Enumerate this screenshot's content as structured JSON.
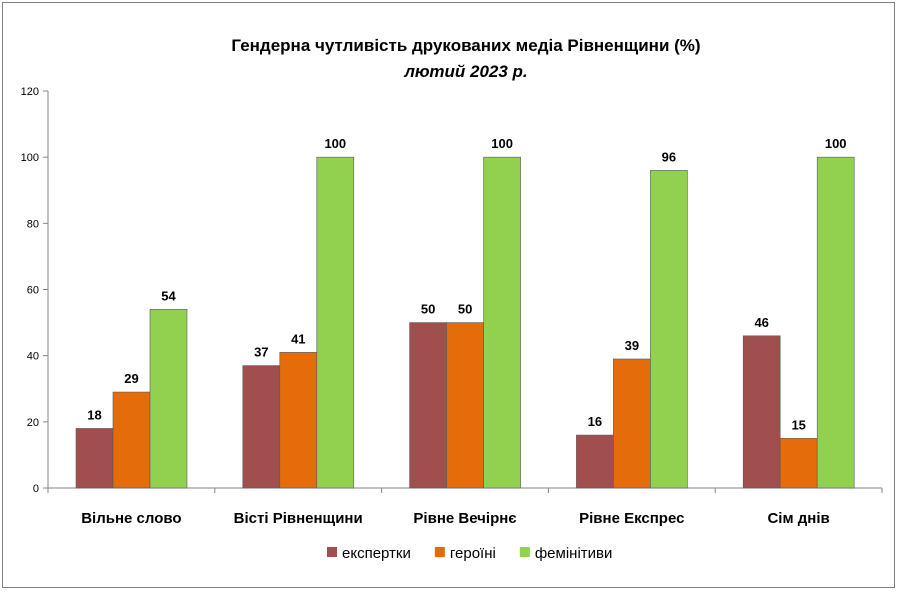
{
  "chart_data": {
    "type": "bar",
    "title": "Гендерна чутливість друкованих медіа Рівненщини (%)",
    "subtitle": "лютий 2023 р.",
    "categories": [
      "Вільне слово",
      "Вісті Рівненщини",
      "Рівне Вечірнє",
      "Рівне Експрес",
      "Сім днів"
    ],
    "series": [
      {
        "name": "експертки",
        "color": "#a04e4e",
        "values": [
          18,
          37,
          50,
          16,
          46
        ]
      },
      {
        "name": "героїні",
        "color": "#e46c0a",
        "values": [
          29,
          41,
          50,
          39,
          15
        ]
      },
      {
        "name": "фемінітиви",
        "color": "#92d050",
        "values": [
          54,
          100,
          100,
          96,
          100
        ]
      }
    ],
    "ylim": [
      0,
      120
    ],
    "yticks": [
      0,
      20,
      40,
      60,
      80,
      100,
      120
    ],
    "grid": false,
    "legend": "bottom"
  }
}
